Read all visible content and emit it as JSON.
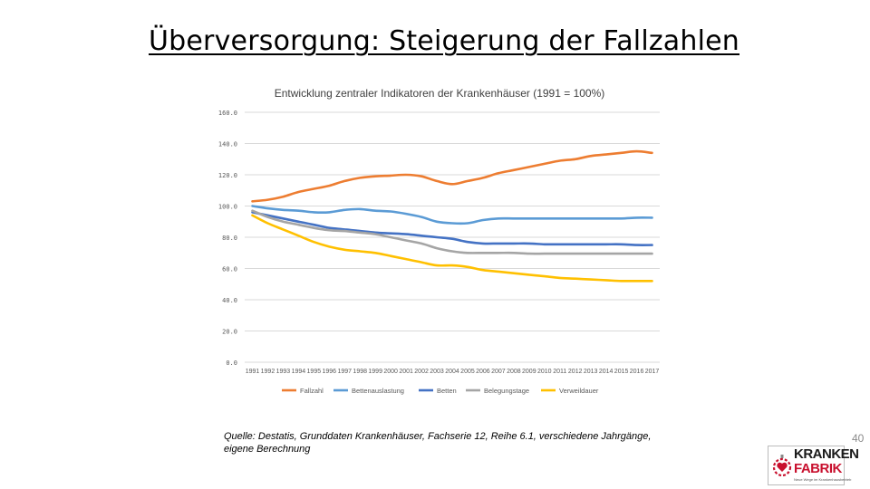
{
  "slide": {
    "title": "Überversorgung: Steigerung der Fallzahlen",
    "source": "Quelle: Destatis, Grunddaten Krankenhäuser, Fachserie 12, Reihe 6.1, verschiedene Jahrgänge, eigene Berechnung",
    "page_number": "40"
  },
  "logo": {
    "line1": "KRANKEN",
    "line2": "FABRIK",
    "side_text": "GmbH",
    "tagline": "Neue Wege im Krankenhausbetrieb",
    "brand_color": "#c8102e"
  },
  "chart_data": {
    "type": "line",
    "title": "Entwicklung zentraler Indikatoren der Krankenhäuser (1991 = 100%)",
    "xlabel": "",
    "ylabel": "",
    "ylim": [
      0,
      160
    ],
    "yticks": [
      "0.0",
      "20.0",
      "40.0",
      "60.0",
      "80.0",
      "100.0",
      "120.0",
      "140.0",
      "160.0"
    ],
    "grid": true,
    "legend_position": "bottom",
    "categories": [
      "1991",
      "1992",
      "1993",
      "1994",
      "1995",
      "1996",
      "1997",
      "1998",
      "1999",
      "2000",
      "2001",
      "2002",
      "2003",
      "2004",
      "2005",
      "2006",
      "2007",
      "2008",
      "2009",
      "2010",
      "2011",
      "2012",
      "2013",
      "2014",
      "2015",
      "2016",
      "2017"
    ],
    "series": [
      {
        "name": "Fallzahl",
        "color": "#ed7d31",
        "values": [
          103,
          104,
          106,
          109,
          111,
          113,
          116,
          118,
          119,
          119.5,
          120,
          119,
          116,
          114,
          116,
          118,
          121,
          123,
          125,
          127,
          129,
          130,
          132,
          133,
          134,
          135,
          134
        ]
      },
      {
        "name": "Bettenauslastung",
        "color": "#5b9bd5",
        "values": [
          100,
          98.5,
          97.5,
          97,
          96,
          96,
          97.5,
          98,
          97,
          96.5,
          95,
          93,
          90,
          89,
          89,
          91,
          92,
          92,
          92,
          92,
          92,
          92,
          92,
          92,
          92,
          92.5,
          92.5
        ]
      },
      {
        "name": "Betten",
        "color": "#4472c4",
        "values": [
          96,
          94,
          92,
          90,
          88,
          86,
          85,
          84,
          83,
          82.5,
          82,
          81,
          80,
          79,
          77,
          76,
          76,
          76,
          76,
          75.5,
          75.5,
          75.5,
          75.5,
          75.5,
          75.5,
          75,
          75
        ]
      },
      {
        "name": "Belegungstage",
        "color": "#a5a5a5",
        "values": [
          97,
          93,
          90,
          88,
          86,
          84.5,
          84,
          83,
          82,
          80,
          78,
          76,
          73,
          71,
          70,
          70,
          70,
          70,
          69.5,
          69.5,
          69.5,
          69.5,
          69.5,
          69.5,
          69.5,
          69.5,
          69.5
        ]
      },
      {
        "name": "Verweildauer",
        "color": "#ffc000",
        "values": [
          94,
          89,
          85,
          81,
          77,
          74,
          72,
          71,
          70,
          68,
          66,
          64,
          62,
          62,
          61,
          59,
          58,
          57,
          56,
          55,
          54,
          53.5,
          53,
          52.5,
          52,
          52,
          52
        ]
      }
    ]
  }
}
